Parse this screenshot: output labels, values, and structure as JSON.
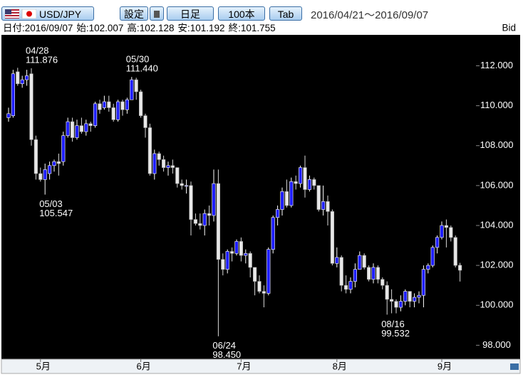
{
  "toolbar": {
    "pair": "USD/JPY",
    "buttons": [
      "設定",
      "日足",
      "100本",
      "Tab"
    ],
    "range": "2016/04/21～2016/09/07"
  },
  "chart_data": {
    "type": "candlestick",
    "price_type": "Bid",
    "info": {
      "date_label": "日付:",
      "date": "2016/09/07",
      "open_label": "始:",
      "high_label": "高:",
      "low_label": "安:",
      "close_label": "終:"
    },
    "up_color": "#1e1eff",
    "down_color": "#e8e8e8",
    "categories": [
      null,
      null,
      null,
      null,
      null,
      null,
      null,
      "5月",
      null,
      null,
      null,
      null,
      null,
      null,
      null,
      null,
      null,
      null,
      null,
      null,
      null,
      null,
      null,
      null,
      null,
      null,
      null,
      null,
      null,
      "6月",
      null,
      null,
      null,
      null,
      null,
      null,
      null,
      null,
      null,
      null,
      null,
      null,
      null,
      null,
      null,
      null,
      null,
      null,
      null,
      null,
      null,
      "7月",
      null,
      null,
      null,
      null,
      null,
      null,
      null,
      null,
      null,
      null,
      null,
      null,
      null,
      null,
      null,
      null,
      null,
      null,
      null,
      null,
      "8月",
      null,
      null,
      null,
      null,
      null,
      null,
      null,
      null,
      null,
      null,
      null,
      null,
      null,
      null,
      null,
      null,
      null,
      null,
      null,
      null,
      null,
      null,
      "9月",
      null,
      null,
      null,
      null
    ],
    "open": [
      109.4,
      109.5,
      111.7,
      111.1,
      111.3,
      111.6,
      108.3,
      106.6,
      106.3,
      106.6,
      107.0,
      107.2,
      107.2,
      108.5,
      109.2,
      108.4,
      109.0,
      108.7,
      109.1,
      109.0,
      110.1,
      109.9,
      110.2,
      109.9,
      109.3,
      110.2,
      109.8,
      110.3,
      111.3,
      110.7,
      109.5,
      108.9,
      106.6,
      107.6,
      107.3,
      106.9,
      107.0,
      106.9,
      106.1,
      106.0,
      106.0,
      104.3,
      104.1,
      104.0,
      104.6,
      104.5,
      106.1,
      102.3,
      101.8,
      102.7,
      102.6,
      103.2,
      102.5,
      102.6,
      101.9,
      101.2,
      100.7,
      100.6,
      102.8,
      104.4,
      104.8,
      105.7,
      105.0,
      106.2,
      106.1,
      106.9,
      105.8,
      106.3,
      106.0,
      104.8,
      105.2,
      104.7,
      102.1,
      102.4,
      101.0,
      100.8,
      101.2,
      101.8,
      102.5,
      101.9,
      101.3,
      101.9,
      101.3,
      101.0,
      100.3,
      100.2,
      99.9,
      100.2,
      100.7,
      100.2,
      100.4,
      100.5,
      101.8,
      102.0,
      102.9,
      103.4,
      104.0,
      103.9,
      103.4,
      102.007
    ],
    "high": [
      109.9,
      111.8,
      111.9,
      111.5,
      111.8,
      111.876,
      108.5,
      106.9,
      107.1,
      107.2,
      107.3,
      107.6,
      108.7,
      109.4,
      109.4,
      109.3,
      109.4,
      109.3,
      109.2,
      110.2,
      110.3,
      110.5,
      110.5,
      110.1,
      110.3,
      110.3,
      110.4,
      111.44,
      111.4,
      110.8,
      109.6,
      109.1,
      107.8,
      107.7,
      107.5,
      107.2,
      107.3,
      106.9,
      106.3,
      106.3,
      106.2,
      104.6,
      104.6,
      104.8,
      105.0,
      106.8,
      106.8,
      102.6,
      102.8,
      102.9,
      103.3,
      103.4,
      102.8,
      102.7,
      101.9,
      101.5,
      101.0,
      102.9,
      104.5,
      105.0,
      105.9,
      106.3,
      106.4,
      106.5,
      107.0,
      107.5,
      106.5,
      106.4,
      106.0,
      106.0,
      105.5,
      104.8,
      102.9,
      102.5,
      101.5,
      101.4,
      102.1,
      102.7,
      102.6,
      102.0,
      102.1,
      102.0,
      101.4,
      101.2,
      100.8,
      100.3,
      100.5,
      100.8,
      100.7,
      100.6,
      100.7,
      102.0,
      102.1,
      103.0,
      103.5,
      104.2,
      104.3,
      104.0,
      103.5,
      102.128
    ],
    "low": [
      109.2,
      109.4,
      111.0,
      110.9,
      111.0,
      108.0,
      106.3,
      106.2,
      105.547,
      106.3,
      106.7,
      106.5,
      107.0,
      108.4,
      108.2,
      108.3,
      108.6,
      108.5,
      108.7,
      108.9,
      109.6,
      109.8,
      109.7,
      109.2,
      109.2,
      109.5,
      109.6,
      110.3,
      110.3,
      109.4,
      108.4,
      106.5,
      106.3,
      107.0,
      106.7,
      106.5,
      106.6,
      105.9,
      105.8,
      105.6,
      103.5,
      104.0,
      103.8,
      103.5,
      104.0,
      104.2,
      98.45,
      101.5,
      101.6,
      102.2,
      102.5,
      102.2,
      102.1,
      101.4,
      100.5,
      100.6,
      99.9,
      100.5,
      102.6,
      104.0,
      104.5,
      104.9,
      104.9,
      105.8,
      105.9,
      105.4,
      105.7,
      105.8,
      104.7,
      104.5,
      104.0,
      102.0,
      101.9,
      100.7,
      100.6,
      100.6,
      100.9,
      101.8,
      101.8,
      101.2,
      101.1,
      101.1,
      100.8,
      99.532,
      99.6,
      99.6,
      99.7,
      100.0,
      99.9,
      99.9,
      100.1,
      99.9,
      101.6,
      101.9,
      102.6,
      103.3,
      102.9,
      103.2,
      101.9,
      101.192
    ],
    "close": [
      109.6,
      111.6,
      111.1,
      111.3,
      111.5,
      108.3,
      106.6,
      106.3,
      106.8,
      107.0,
      107.2,
      107.1,
      108.5,
      109.2,
      108.4,
      109.0,
      108.7,
      109.1,
      109.0,
      110.1,
      109.8,
      110.2,
      109.9,
      109.3,
      110.2,
      109.8,
      110.3,
      111.3,
      110.7,
      109.5,
      108.9,
      106.6,
      107.6,
      107.3,
      106.9,
      107.0,
      106.9,
      106.1,
      106.0,
      106.0,
      104.3,
      104.1,
      104.0,
      104.6,
      104.5,
      106.1,
      102.3,
      101.8,
      102.7,
      102.6,
      103.2,
      102.5,
      102.6,
      101.9,
      101.2,
      100.7,
      100.6,
      102.8,
      104.4,
      104.8,
      105.7,
      105.0,
      106.2,
      106.1,
      106.9,
      105.8,
      106.3,
      106.0,
      104.8,
      105.2,
      104.7,
      102.1,
      102.4,
      101.0,
      100.8,
      101.2,
      101.8,
      102.5,
      101.9,
      101.3,
      101.9,
      101.3,
      101.0,
      100.3,
      100.2,
      99.9,
      100.2,
      100.7,
      100.2,
      100.4,
      100.5,
      101.8,
      102.0,
      102.9,
      103.4,
      104.0,
      103.9,
      103.4,
      102.0,
      101.755
    ],
    "ylim": [
      97.3,
      113.55
    ],
    "yticks": [
      {
        "value": 98,
        "label": "98.000"
      },
      {
        "value": 100,
        "label": "100.000"
      },
      {
        "value": 102,
        "label": "102.000"
      },
      {
        "value": 104,
        "label": "104.000"
      },
      {
        "value": 106,
        "label": "106.000"
      },
      {
        "value": 108,
        "label": "108.000"
      },
      {
        "value": 110,
        "label": "110.000"
      },
      {
        "value": 112,
        "label": "112.000"
      }
    ],
    "annotations": [
      {
        "date": "04/28",
        "at": "high",
        "price": 111.876
      },
      {
        "date": "05/03",
        "at": "low",
        "price": 105.547
      },
      {
        "date": "05/30",
        "at": "high",
        "price": {
          "value": 111.44,
          "label": "111.440"
        }
      },
      {
        "date": "06/24",
        "at": "low",
        "price": {
          "value": 98.45,
          "label": "98.450"
        }
      },
      {
        "date": "08/16",
        "at": "low",
        "price": 99.532
      }
    ]
  }
}
